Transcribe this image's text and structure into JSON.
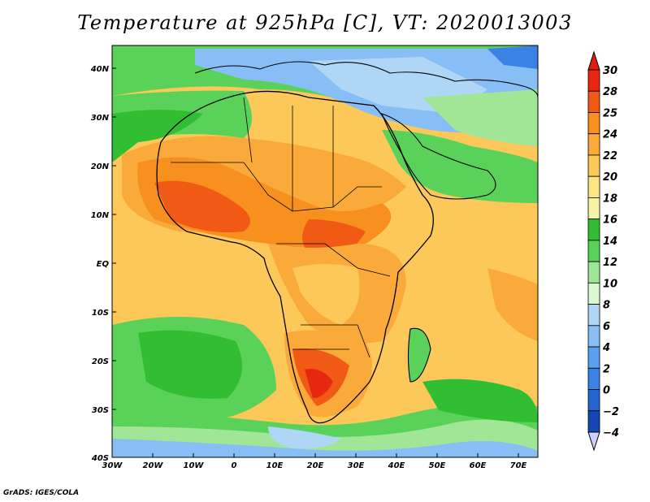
{
  "title": "Temperature at 925hPa [C], VT: 2020013003",
  "credit": "GrADS: IGES/COLA",
  "map": {
    "lon_range": [
      -30,
      75
    ],
    "lat_range": [
      -40,
      45
    ],
    "x_ticks": [
      "30W",
      "20W",
      "10W",
      "0",
      "10E",
      "20E",
      "30E",
      "40E",
      "50E",
      "60E",
      "70E"
    ],
    "y_ticks": [
      "40N",
      "30N",
      "20N",
      "10N",
      "EQ",
      "10S",
      "20S",
      "30S",
      "40S"
    ]
  },
  "colorbar": {
    "labels": [
      "30",
      "28",
      "25",
      "24",
      "22",
      "20",
      "18",
      "16",
      "14",
      "12",
      "10",
      "8",
      "6",
      "4",
      "2",
      "0",
      "−2",
      "−4"
    ],
    "colors": [
      "#e62810",
      "#f05a14",
      "#f7901e",
      "#faaa3a",
      "#fcc85a",
      "#fde485",
      "#f6f4a6",
      "#32be32",
      "#5ad25a",
      "#a0e696",
      "#dcfad2",
      "#afd7f5",
      "#87bef5",
      "#5aa0f0",
      "#3c82e6",
      "#2664d2",
      "#1446b4",
      "#0a1e82"
    ],
    "top_color": "#e01e0e",
    "bottom_color": "#cfcfff"
  }
}
